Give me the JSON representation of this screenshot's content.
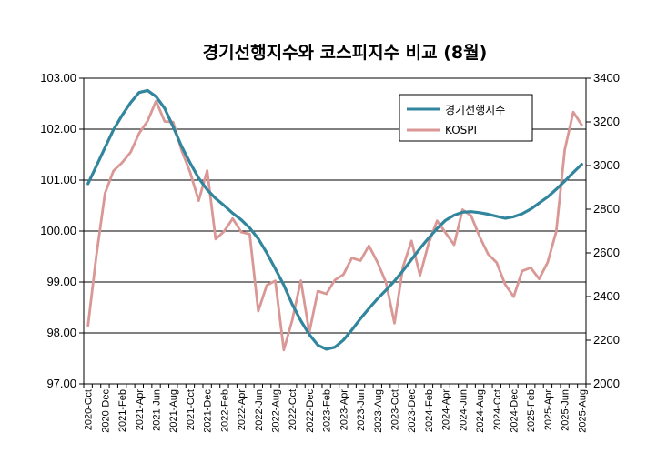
{
  "chart_data": {
    "type": "line",
    "title": "경기선행지수와 코스피지수 비교 (8월)",
    "x": [
      "2020-Oct",
      "2020-Nov",
      "2020-Dec",
      "2021-Jan",
      "2021-Feb",
      "2021-Mar",
      "2021-Apr",
      "2021-May",
      "2021-Jun",
      "2021-Jul",
      "2021-Aug",
      "2021-Sep",
      "2021-Oct",
      "2021-Nov",
      "2021-Dec",
      "2022-Jan",
      "2022-Feb",
      "2022-Mar",
      "2022-Apr",
      "2022-May",
      "2022-Jun",
      "2022-Jul",
      "2022-Aug",
      "2022-Sep",
      "2022-Oct",
      "2022-Nov",
      "2022-Dec",
      "2023-Jan",
      "2023-Feb",
      "2023-Mar",
      "2023-Apr",
      "2023-May",
      "2023-Jun",
      "2023-Jul",
      "2023-Aug",
      "2023-Sep",
      "2023-Oct",
      "2023-Nov",
      "2023-Dec",
      "2024-Jan",
      "2024-Feb",
      "2024-Mar",
      "2024-Apr",
      "2024-May",
      "2024-Jun",
      "2024-Jul",
      "2024-Aug",
      "2024-Sep",
      "2024-Oct",
      "2024-Nov",
      "2024-Dec",
      "2025-Jan",
      "2025-Feb",
      "2025-Mar",
      "2025-Apr",
      "2025-May",
      "2025-Jun",
      "2025-Jul",
      "2025-Aug"
    ],
    "x_tick_labels": [
      "2020-Oct",
      "2020-Dec",
      "2021-Feb",
      "2021-Apr",
      "2021-Jun",
      "2021-Aug",
      "2021-Oct",
      "2021-Dec",
      "2022-Feb",
      "2022-Apr",
      "2022-Jun",
      "2022-Aug",
      "2022-Oct",
      "2022-Dec",
      "2023-Feb",
      "2023-Apr",
      "2023-Jun",
      "2023-Aug",
      "2023-Oct",
      "2023-Dec",
      "2024-Feb",
      "2024-Apr",
      "2024-Jun",
      "2024-Aug",
      "2024-Oct",
      "2024-Dec",
      "2025-Feb",
      "2025-Apr",
      "2025-Jun",
      "2025-Aug"
    ],
    "series": [
      {
        "name": "경기선행지수",
        "axis": "left",
        "color": "#31859c",
        "values": [
          100.93,
          101.28,
          101.64,
          101.99,
          102.27,
          102.52,
          102.72,
          102.76,
          102.64,
          102.41,
          102.05,
          101.66,
          101.34,
          101.04,
          100.81,
          100.64,
          100.5,
          100.35,
          100.22,
          100.06,
          99.85,
          99.57,
          99.26,
          98.94,
          98.56,
          98.24,
          97.97,
          97.76,
          97.68,
          97.72,
          97.86,
          98.06,
          98.28,
          98.48,
          98.67,
          98.84,
          99.02,
          99.22,
          99.44,
          99.66,
          99.86,
          100.05,
          100.21,
          100.31,
          100.37,
          100.38,
          100.36,
          100.33,
          100.29,
          100.25,
          100.28,
          100.34,
          100.43,
          100.55,
          100.67,
          100.82,
          100.98,
          101.15,
          101.31
        ]
      },
      {
        "name": "KOSPI",
        "axis": "right",
        "color": "#d99795",
        "values": [
          2267,
          2591,
          2873,
          2976,
          3013,
          3061,
          3147,
          3204,
          3296,
          3202,
          3199,
          3069,
          2970,
          2839,
          2977,
          2663,
          2699,
          2757,
          2695,
          2686,
          2333,
          2452,
          2472,
          2155,
          2293,
          2473,
          2236,
          2425,
          2412,
          2476,
          2501,
          2577,
          2564,
          2633,
          2557,
          2466,
          2278,
          2535,
          2655,
          2497,
          2642,
          2747,
          2692,
          2637,
          2798,
          2770,
          2674,
          2594,
          2556,
          2456,
          2399,
          2517,
          2532,
          2481,
          2557,
          2698,
          3072,
          3245,
          3186
        ]
      }
    ],
    "ylabel_left": "",
    "ylabel_right": "",
    "y_left": {
      "range": [
        97.0,
        103.0
      ],
      "ticks": [
        "97.00",
        "98.00",
        "99.00",
        "100.00",
        "101.00",
        "102.00",
        "103.00"
      ]
    },
    "y_right": {
      "range": [
        2000,
        3400
      ],
      "ticks": [
        "2000",
        "2200",
        "2400",
        "2600",
        "2800",
        "3000",
        "3200",
        "3400"
      ]
    },
    "grid": "horizontal",
    "legend_position": "top-right"
  }
}
